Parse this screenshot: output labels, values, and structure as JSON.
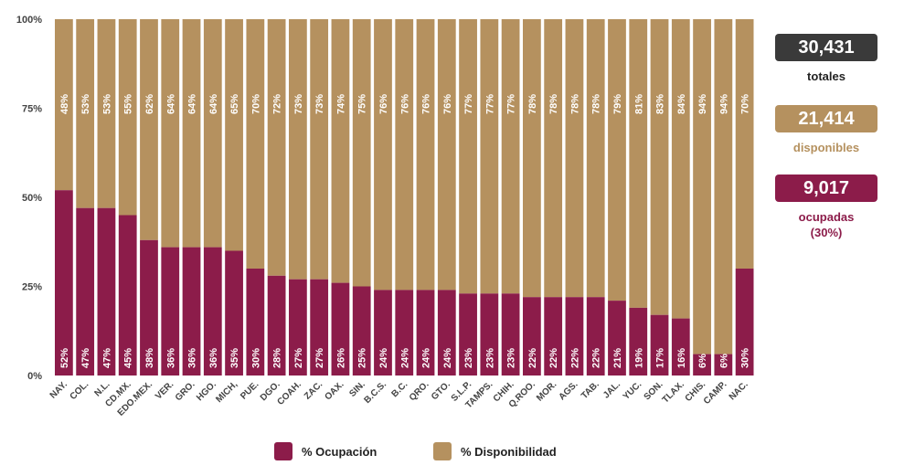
{
  "colors": {
    "ocupacion": "#8c1c4a",
    "disponibilidad": "#b5915f",
    "dark": "#3a3a3a",
    "axis_text": "#444444"
  },
  "chart_data": {
    "type": "bar",
    "stacked": true,
    "categories": [
      "NAY.",
      "COL.",
      "N.L.",
      "CD.MX.",
      "EDO.MEX.",
      "VER.",
      "GRO.",
      "HGO.",
      "MICH,",
      "PUE.",
      "DGO.",
      "COAH.",
      "ZAC.",
      "OAX.",
      "SIN.",
      "B.C.S.",
      "B.C.",
      "QRO.",
      "GTO.",
      "S.L.P.",
      "TAMPS.",
      "CHIH.",
      "Q.ROO.",
      "MOR.",
      "AGS.",
      "TAB.",
      "JAL.",
      "YUC.",
      "SON.",
      "TLAX.",
      "CHIS.",
      "CAMP.",
      "NAC."
    ],
    "series": [
      {
        "name": "% Ocupación",
        "values": [
          52,
          47,
          47,
          45,
          38,
          36,
          36,
          36,
          35,
          30,
          28,
          27,
          27,
          26,
          25,
          24,
          24,
          24,
          24,
          23,
          23,
          23,
          22,
          22,
          22,
          22,
          21,
          19,
          17,
          16,
          6,
          6,
          30
        ]
      },
      {
        "name": "% Disponibilidad",
        "values": [
          48,
          53,
          53,
          55,
          62,
          64,
          64,
          64,
          65,
          70,
          72,
          73,
          73,
          74,
          75,
          76,
          76,
          76,
          76,
          77,
          77,
          77,
          78,
          78,
          78,
          78,
          79,
          81,
          83,
          84,
          94,
          94,
          70
        ]
      }
    ],
    "yticks": [
      "0%",
      "25%",
      "50%",
      "75%",
      "100%"
    ],
    "ylim": [
      0,
      100
    ],
    "legend": "bottom",
    "grid": false
  },
  "summary": {
    "totales_value": "30,431",
    "totales_label": "totales",
    "disponibles_value": "21,414",
    "disponibles_label": "disponibles",
    "ocupadas_value": "9,017",
    "ocupadas_label": "ocupadas",
    "ocupadas_pct": "(30%)"
  },
  "legend": {
    "ocupacion_label": "% Ocupación",
    "disponibilidad_label": "% Disponibilidad"
  }
}
